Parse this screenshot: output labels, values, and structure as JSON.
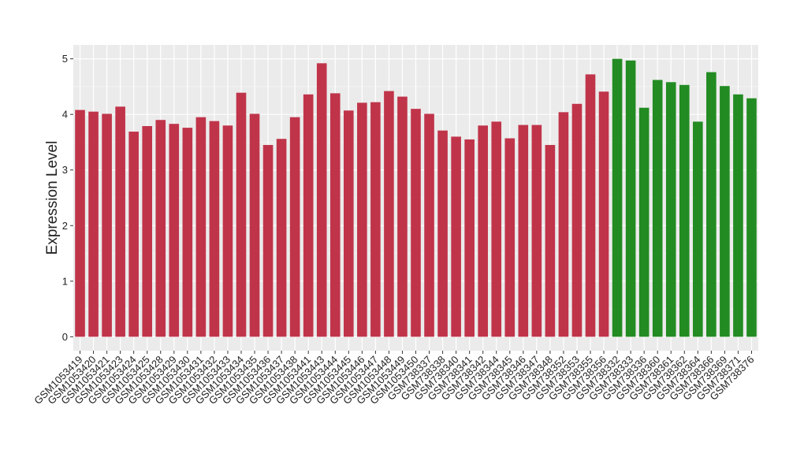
{
  "chart_data": {
    "type": "bar",
    "y_label": "Expression Level",
    "categories": [
      "GSM1053419",
      "GSM1053420",
      "GSM1053421",
      "GSM1053423",
      "GSM1053424",
      "GSM1053425",
      "GSM1053428",
      "GSM1053429",
      "GSM1053430",
      "GSM1053431",
      "GSM1053432",
      "GSM1053433",
      "GSM1053434",
      "GSM1053435",
      "GSM1053436",
      "GSM1053437",
      "GSM1053438",
      "GSM1053441",
      "GSM1053443",
      "GSM1053444",
      "GSM1053445",
      "GSM1053446",
      "GSM1053447",
      "GSM1053448",
      "GSM1053449",
      "GSM1053450",
      "GSM738337",
      "GSM738338",
      "GSM738340",
      "GSM738341",
      "GSM738342",
      "GSM738344",
      "GSM738345",
      "GSM738346",
      "GSM738347",
      "GSM738348",
      "GSM738352",
      "GSM738353",
      "GSM738355",
      "GSM738356",
      "GSM738332",
      "GSM738333",
      "GSM738336",
      "GSM738360",
      "GSM738361",
      "GSM738362",
      "GSM738364",
      "GSM738366",
      "GSM738369",
      "GSM738371",
      "GSM738376"
    ],
    "values": [
      4.08,
      4.05,
      4.01,
      4.14,
      3.69,
      3.79,
      3.9,
      3.83,
      3.76,
      3.95,
      3.88,
      3.8,
      4.39,
      4.01,
      3.45,
      3.56,
      3.95,
      4.36,
      4.92,
      4.38,
      4.07,
      4.21,
      4.22,
      4.42,
      4.32,
      4.1,
      4.01,
      3.71,
      3.6,
      3.55,
      3.8,
      3.87,
      3.57,
      3.81,
      3.81,
      3.45,
      4.04,
      4.19,
      4.72,
      4.41,
      5.0,
      4.97,
      4.12,
      4.62,
      4.58,
      4.53,
      3.87,
      4.76,
      4.51,
      4.36,
      4.29
    ],
    "bar_colors": [
      "#c0344a",
      "#c0344a",
      "#c0344a",
      "#c0344a",
      "#c0344a",
      "#c0344a",
      "#c0344a",
      "#c0344a",
      "#c0344a",
      "#c0344a",
      "#c0344a",
      "#c0344a",
      "#c0344a",
      "#c0344a",
      "#c0344a",
      "#c0344a",
      "#c0344a",
      "#c0344a",
      "#c0344a",
      "#c0344a",
      "#c0344a",
      "#c0344a",
      "#c0344a",
      "#c0344a",
      "#c0344a",
      "#c0344a",
      "#c0344a",
      "#c0344a",
      "#c0344a",
      "#c0344a",
      "#c0344a",
      "#c0344a",
      "#c0344a",
      "#c0344a",
      "#c0344a",
      "#c0344a",
      "#c0344a",
      "#c0344a",
      "#c0344a",
      "#c0344a",
      "#228b22",
      "#228b22",
      "#228b22",
      "#228b22",
      "#228b22",
      "#228b22",
      "#228b22",
      "#228b22",
      "#228b22",
      "#228b22",
      "#228b22"
    ],
    "ylim": [
      -0.25,
      5.25
    ],
    "yticks": [
      0,
      1,
      2,
      3,
      4,
      5
    ],
    "grid": true
  }
}
